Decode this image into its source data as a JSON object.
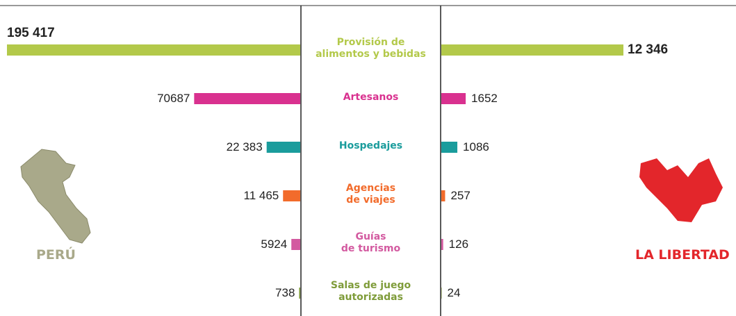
{
  "chart_data": {
    "type": "butterfly-bar",
    "categories": [
      "Provisión de\nalimentos y bebidas",
      "Artesanos",
      "Hospedajes",
      "Agencias\nde viajes",
      "Guías\nde turismo",
      "Salas de juego\nautorizadas"
    ],
    "colors": [
      "#b3c94a",
      "#d9318f",
      "#1a9c9c",
      "#f26b2b",
      "#d35aa0",
      "#7f9c3a"
    ],
    "series": [
      {
        "name": "PERÚ",
        "color": "#a9a98a",
        "values": [
          195417,
          70687,
          22383,
          11465,
          5924,
          738
        ],
        "value_labels": [
          "195 417",
          "70687",
          "22 383",
          "11 465",
          "5924",
          "738"
        ]
      },
      {
        "name": "LA LIBERTAD",
        "color": "#e3262b",
        "values": [
          12346,
          1652,
          1086,
          257,
          126,
          24
        ],
        "value_labels": [
          "12 346",
          "1652",
          "1086",
          "257",
          "126",
          "24"
        ]
      }
    ]
  }
}
